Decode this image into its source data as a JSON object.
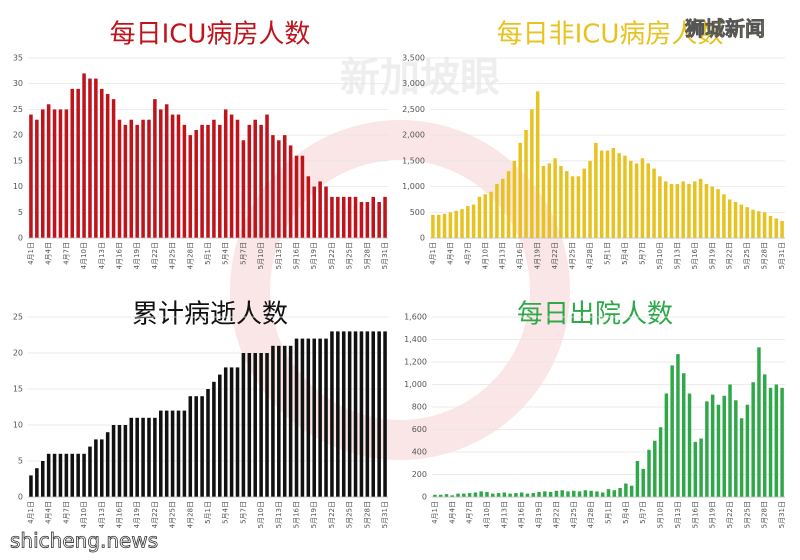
{
  "watermarks": [
    "狮城新闻",
    "新加坡眼",
    "shicheng.news"
  ],
  "chart_data": [
    {
      "type": "bar",
      "title": "每日ICU病房人数",
      "color": "#c0141c",
      "categories": [
        "4月1日",
        null,
        null,
        "4月4日",
        null,
        null,
        "4月7日",
        null,
        null,
        "4月10日",
        null,
        null,
        "4月13日",
        null,
        null,
        "4月16日",
        null,
        null,
        "4月19日",
        null,
        null,
        "4月22日",
        null,
        null,
        "4月25日",
        null,
        null,
        "4月28日",
        null,
        null,
        "5月1日",
        null,
        null,
        "5月4日",
        null,
        null,
        "5月7日",
        null,
        null,
        "5月10日",
        null,
        null,
        "5月13日",
        null,
        null,
        "5月16日",
        null,
        null,
        "5月19日",
        null,
        null,
        "5月22日",
        null,
        null,
        "5月25日",
        null,
        null,
        "5月28日",
        null,
        null,
        "5月31日"
      ],
      "values": [
        24,
        23,
        25,
        26,
        25,
        25,
        25,
        29,
        29,
        32,
        31,
        31,
        29,
        28,
        27,
        23,
        22,
        23,
        22,
        23,
        23,
        27,
        25,
        26,
        24,
        24,
        22,
        20,
        21,
        22,
        22,
        23,
        22,
        25,
        24,
        23,
        19,
        22,
        23,
        22,
        24,
        20,
        19,
        20,
        18,
        16,
        16,
        12,
        10,
        11,
        10,
        8,
        8,
        8,
        8,
        8,
        7,
        7,
        8,
        7,
        8
      ],
      "ylim": [
        0,
        35
      ],
      "yticks": [
        0,
        5,
        10,
        15,
        20,
        25,
        30,
        35
      ]
    },
    {
      "type": "bar",
      "title": "每日非ICU病房人数",
      "color": "#e8c21e",
      "categories": [
        "4月1日",
        null,
        null,
        "4月4日",
        null,
        null,
        "4月7日",
        null,
        null,
        "4月10日",
        null,
        null,
        "4月13日",
        null,
        null,
        "4月16日",
        null,
        null,
        "4月19日",
        null,
        null,
        "4月22日",
        null,
        null,
        "4月25日",
        null,
        null,
        "4月28日",
        null,
        null,
        "5月1日",
        null,
        null,
        "5月4日",
        null,
        null,
        "5月7日",
        null,
        null,
        "5月10日",
        null,
        null,
        "5月13日",
        null,
        null,
        "5月16日",
        null,
        null,
        "5月19日",
        null,
        null,
        "5月22日",
        null,
        null,
        "5月25日",
        null,
        null,
        "5月28日",
        null,
        null,
        "5月31日"
      ],
      "values": [
        450,
        450,
        470,
        500,
        530,
        560,
        620,
        650,
        800,
        850,
        900,
        1050,
        1150,
        1300,
        1500,
        1850,
        2100,
        2500,
        2850,
        1400,
        1450,
        1550,
        1400,
        1300,
        1200,
        1200,
        1350,
        1500,
        1850,
        1700,
        1700,
        1750,
        1650,
        1600,
        1500,
        1450,
        1550,
        1450,
        1350,
        1200,
        1100,
        1050,
        1050,
        1100,
        1050,
        1100,
        1150,
        1050,
        1000,
        950,
        850,
        750,
        700,
        650,
        600,
        550,
        520,
        500,
        430,
        380,
        330
      ],
      "ylim": [
        0,
        3500
      ],
      "yticks": [
        0,
        500,
        {
          "value": 1000,
          "label": "1,000"
        },
        {
          "value": 1500,
          "label": "1,500"
        },
        {
          "value": 2000,
          "label": "2,000"
        },
        {
          "value": 2500,
          "label": "2,500"
        },
        {
          "value": 3000,
          "label": "3,000"
        },
        {
          "value": 3500,
          "label": "3,500"
        }
      ]
    },
    {
      "type": "bar",
      "title": "累计病逝人数",
      "color": "#111111",
      "categories": [
        "4月1日",
        null,
        null,
        "4月4日",
        null,
        null,
        "4月7日",
        null,
        null,
        "4月10日",
        null,
        null,
        "4月13日",
        null,
        null,
        "4月16日",
        null,
        null,
        "4月19日",
        null,
        null,
        "4月22日",
        null,
        null,
        "4月25日",
        null,
        null,
        "4月28日",
        null,
        null,
        "5月1日",
        null,
        null,
        "5月4日",
        null,
        null,
        "5月7日",
        null,
        null,
        "5月10日",
        null,
        null,
        "5月13日",
        null,
        null,
        "5月16日",
        null,
        null,
        "5月19日",
        null,
        null,
        "5月22日",
        null,
        null,
        "5月25日",
        null,
        null,
        "5月28日",
        null,
        null,
        "5月31日"
      ],
      "values": [
        3,
        4,
        5,
        6,
        6,
        6,
        6,
        6,
        6,
        6,
        7,
        8,
        8,
        9,
        10,
        10,
        10,
        11,
        11,
        11,
        11,
        11,
        12,
        12,
        12,
        12,
        12,
        14,
        14,
        14,
        15,
        16,
        17,
        18,
        18,
        18,
        20,
        20,
        20,
        20,
        20,
        21,
        21,
        21,
        21,
        22,
        22,
        22,
        22,
        22,
        22,
        23,
        23,
        23,
        23,
        23,
        23,
        23,
        23,
        23,
        23
      ],
      "ylim": [
        0,
        25
      ],
      "yticks": [
        0,
        5,
        10,
        15,
        20,
        25
      ]
    },
    {
      "type": "bar",
      "title": "每日出院人数",
      "color": "#2fa84a",
      "categories": [
        "4月1日",
        null,
        null,
        "4月4日",
        null,
        null,
        "4月7日",
        null,
        null,
        "4月10日",
        null,
        null,
        "4月13日",
        null,
        null,
        "4月16日",
        null,
        null,
        "4月19日",
        null,
        null,
        "4月22日",
        null,
        null,
        "4月25日",
        null,
        null,
        "4月28日",
        null,
        null,
        "5月1日",
        null,
        null,
        "5月4日",
        null,
        null,
        "5月7日",
        null,
        null,
        "5月10日",
        null,
        null,
        "5月13日",
        null,
        null,
        "5月16日",
        null,
        null,
        "5月19日",
        null,
        null,
        "5月22日",
        null,
        null,
        "5月25日",
        null,
        null,
        "5月28日",
        null,
        null,
        "5月31日"
      ],
      "values": [
        20,
        20,
        25,
        15,
        30,
        30,
        35,
        40,
        50,
        45,
        30,
        35,
        40,
        30,
        35,
        40,
        30,
        35,
        45,
        50,
        45,
        55,
        60,
        50,
        55,
        50,
        60,
        55,
        50,
        40,
        70,
        60,
        80,
        120,
        100,
        320,
        250,
        420,
        500,
        620,
        920,
        1170,
        1270,
        1100,
        920,
        490,
        520,
        850,
        910,
        820,
        900,
        1000,
        860,
        700,
        820,
        1020,
        1330,
        1090,
        970,
        1000,
        970
      ],
      "ylim": [
        0,
        1600
      ],
      "yticks": [
        0,
        200,
        400,
        600,
        800,
        {
          "value": 1000,
          "label": "1,000"
        },
        {
          "value": 1200,
          "label": "1,200"
        },
        {
          "value": 1400,
          "label": "1,400"
        },
        {
          "value": 1600,
          "label": "1,600"
        }
      ]
    }
  ]
}
